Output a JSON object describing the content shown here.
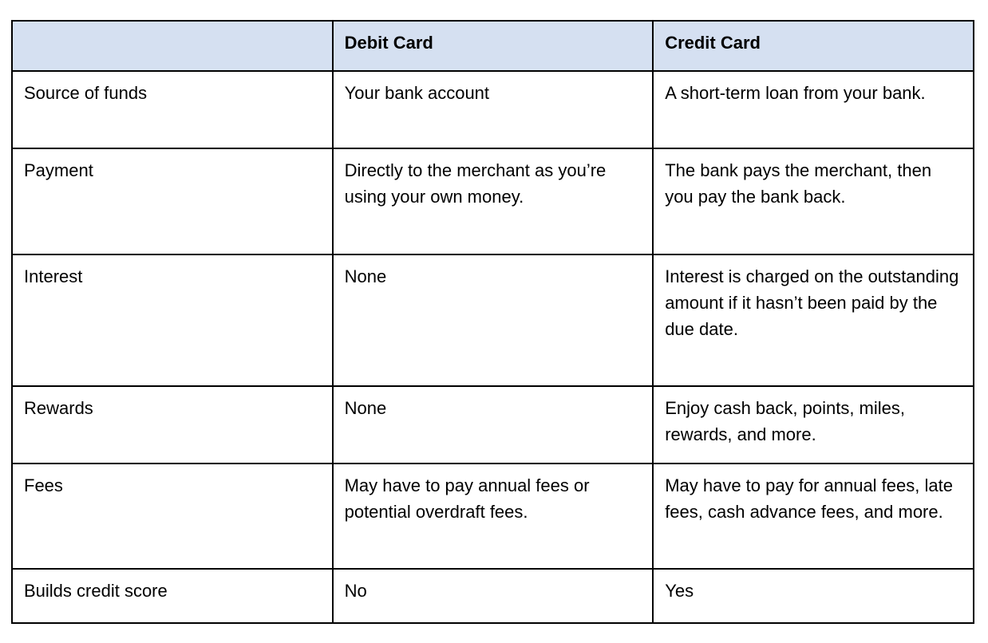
{
  "table": {
    "header": {
      "feature": "",
      "debit": "Debit Card",
      "credit": "Credit Card"
    },
    "rows": [
      {
        "feature": "Source of funds",
        "debit": "Your bank account",
        "credit": "A short-term loan from your bank."
      },
      {
        "feature": "Payment",
        "debit": "Directly to the merchant as you’re using your own money.",
        "credit": "The bank pays the merchant, then you pay the bank back."
      },
      {
        "feature": "Interest",
        "debit": "None",
        "credit": "Interest is charged on the outstanding amount if it hasn’t been paid by the due date."
      },
      {
        "feature": "Rewards",
        "debit": "None",
        "credit": "Enjoy cash back, points, miles, rewards, and more."
      },
      {
        "feature": "Fees",
        "debit": "May have to pay annual fees or potential overdraft fees.",
        "credit": "May have to pay for annual fees, late fees, cash advance fees, and more."
      },
      {
        "feature": "Builds credit score",
        "debit": "No",
        "credit": "Yes"
      }
    ],
    "colors": {
      "header_bg": "#d5e0f1",
      "border": "#000000",
      "text": "#000000"
    }
  }
}
